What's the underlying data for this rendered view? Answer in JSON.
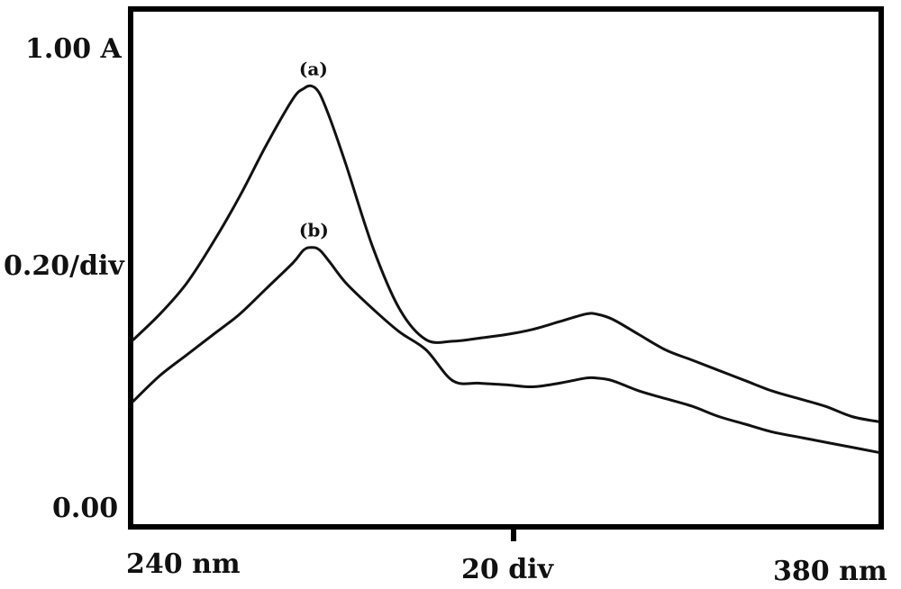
{
  "chart_data": {
    "type": "line",
    "title": "",
    "xlabel": "",
    "ylabel": "",
    "x_unit": "nm",
    "xlim": [
      240,
      380
    ],
    "ylim": [
      0.0,
      1.0
    ],
    "x_ticks": [
      "240 nm",
      "20 div",
      "380 nm"
    ],
    "y_ticks": [
      "1.00 A",
      "0.20/div",
      "0.00"
    ],
    "grid": false,
    "legend": "none",
    "series": [
      {
        "name": "(a)",
        "label": "(a)",
        "x": [
          240,
          245,
          250,
          255,
          260,
          265,
          270,
          272,
          273.5,
          275,
          277,
          280,
          285,
          290,
          295,
          300,
          305,
          310,
          315,
          320,
          325,
          327,
          330,
          335,
          340,
          345,
          350,
          355,
          360,
          365,
          370,
          375,
          380
        ],
        "y": [
          0.36,
          0.41,
          0.47,
          0.55,
          0.64,
          0.74,
          0.83,
          0.85,
          0.855,
          0.84,
          0.79,
          0.7,
          0.54,
          0.42,
          0.36,
          0.357,
          0.363,
          0.37,
          0.38,
          0.395,
          0.41,
          0.41,
          0.4,
          0.37,
          0.34,
          0.32,
          0.3,
          0.28,
          0.26,
          0.245,
          0.23,
          0.21,
          0.2
        ],
        "color": "#111111"
      },
      {
        "name": "(b)",
        "label": "(b)",
        "x": [
          240,
          245,
          250,
          255,
          260,
          265,
          270,
          272,
          273.5,
          275,
          277,
          280,
          285,
          290,
          295,
          300,
          305,
          310,
          315,
          320,
          325,
          327,
          330,
          335,
          340,
          345,
          350,
          355,
          360,
          365,
          370,
          375,
          380
        ],
        "y": [
          0.24,
          0.29,
          0.33,
          0.37,
          0.41,
          0.46,
          0.51,
          0.535,
          0.54,
          0.535,
          0.51,
          0.47,
          0.42,
          0.375,
          0.34,
          0.28,
          0.275,
          0.272,
          0.268,
          0.275,
          0.285,
          0.285,
          0.28,
          0.26,
          0.245,
          0.23,
          0.21,
          0.195,
          0.18,
          0.17,
          0.16,
          0.15,
          0.14
        ],
        "color": "#111111"
      }
    ],
    "colors": {
      "frame": "#000000",
      "curve": "#111111",
      "text": "#111111",
      "background": "#ffffff"
    }
  }
}
